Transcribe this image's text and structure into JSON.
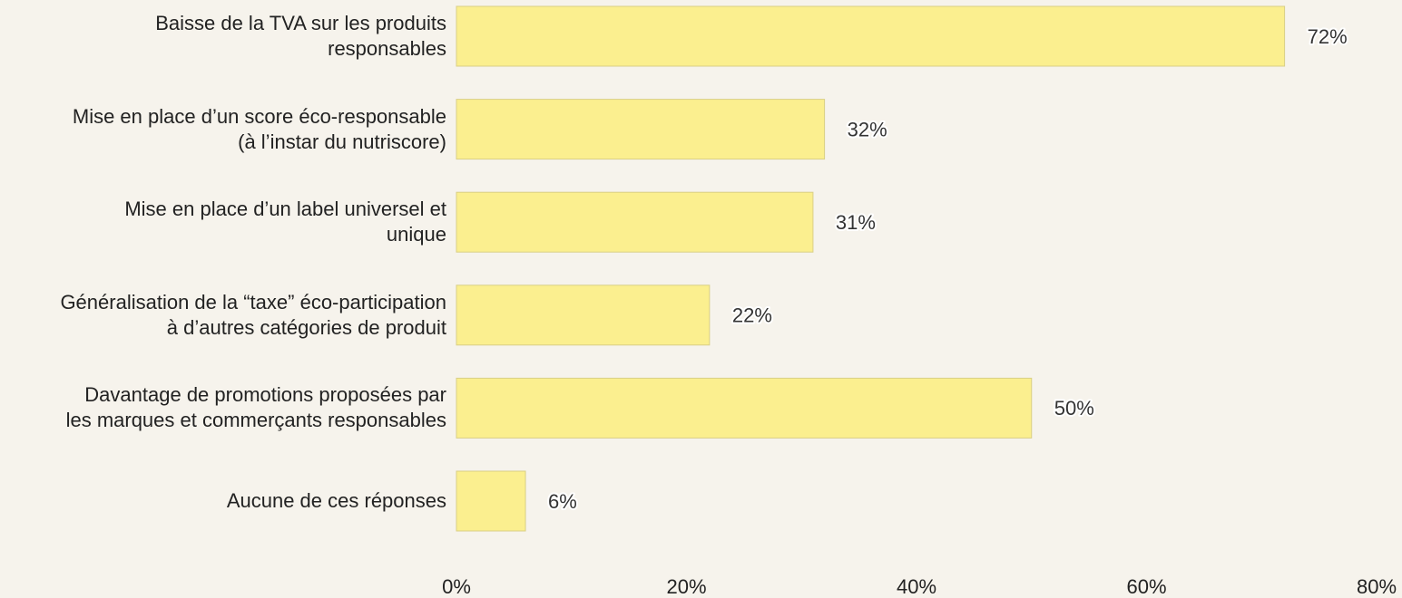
{
  "chart_data": {
    "type": "bar",
    "orientation": "horizontal",
    "categories": [
      "Baisse de la TVA sur les produits\nresponsables",
      "Mise en place d’un score éco-responsable\n(à l’instar du nutriscore)",
      "Mise en place d’un label universel et\nunique",
      "Généralisation de la “taxe” éco-participation\nà d’autres catégories de produit",
      "Davantage de promotions proposées par\nles marques et commerçants responsables",
      "Aucune de ces réponses"
    ],
    "values": [
      72,
      32,
      31,
      22,
      50,
      6
    ],
    "value_labels": [
      "72%",
      "32%",
      "31%",
      "22%",
      "50%",
      "6%"
    ],
    "color": "#fbef8f",
    "xlim": [
      0,
      80
    ],
    "xticks": [
      {
        "value": 0,
        "label": "0%"
      },
      {
        "value": 20,
        "label": "20%"
      },
      {
        "value": 40,
        "label": "40%"
      },
      {
        "value": 60,
        "label": "60%"
      },
      {
        "value": 80,
        "label": "80%"
      }
    ],
    "grid": false
  }
}
